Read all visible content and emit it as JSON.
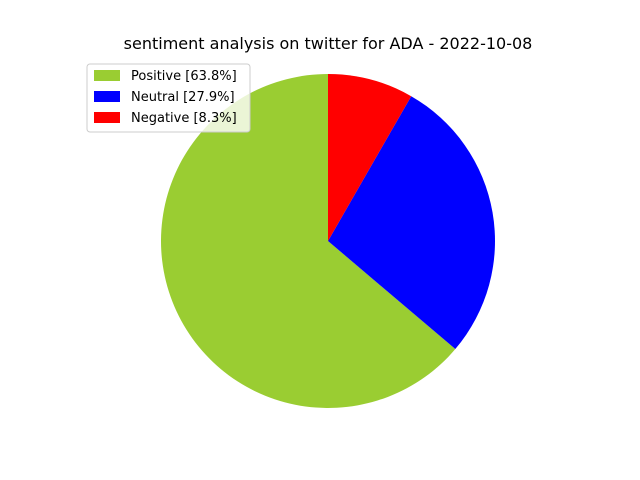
{
  "chart_data": {
    "type": "pie",
    "title": "sentiment analysis on twitter for ADA - 2022-10-08",
    "legend_position": "top-left",
    "start_angle_deg": 90,
    "direction": "counterclockwise",
    "slices": [
      {
        "label": "Positive [63.8%]",
        "value": 63.8,
        "color": "#9acd32"
      },
      {
        "label": "Neutral [27.9%]",
        "value": 27.9,
        "color": "#0000ff"
      },
      {
        "label": "Negative [8.3%]",
        "value": 8.3,
        "color": "#ff0000"
      }
    ]
  }
}
